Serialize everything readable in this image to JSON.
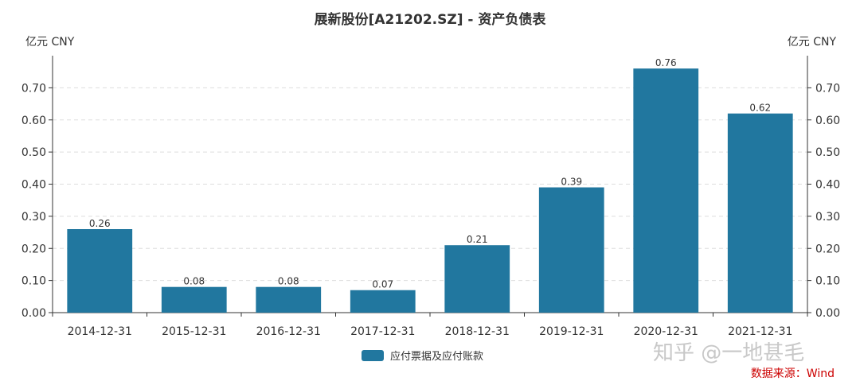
{
  "chart_data": {
    "type": "bar",
    "title": "展新股份[A21202.SZ] - 资产负债表",
    "unit_left": "亿元  CNY",
    "unit_right": "亿元  CNY",
    "categories": [
      "2014-12-31",
      "2015-12-31",
      "2016-12-31",
      "2017-12-31",
      "2018-12-31",
      "2019-12-31",
      "2020-12-31",
      "2021-12-31"
    ],
    "series": [
      {
        "name": "应付票据及应付账款",
        "values": [
          0.26,
          0.08,
          0.08,
          0.07,
          0.21,
          0.39,
          0.76,
          0.62
        ],
        "color": "#21779f"
      }
    ],
    "data_labels": [
      "0.26",
      "0.08",
      "0.08",
      "0.07",
      "0.21",
      "0.39",
      "0.76",
      "0.62"
    ],
    "y_ticks": [
      "0.00",
      "0.10",
      "0.20",
      "0.30",
      "0.40",
      "0.50",
      "0.60",
      "0.70"
    ],
    "ylim": [
      0,
      0.8
    ],
    "grid": true,
    "legend_position": "bottom-center"
  },
  "watermark": "知乎 @一地甚毛",
  "source": "数据来源：Wind"
}
